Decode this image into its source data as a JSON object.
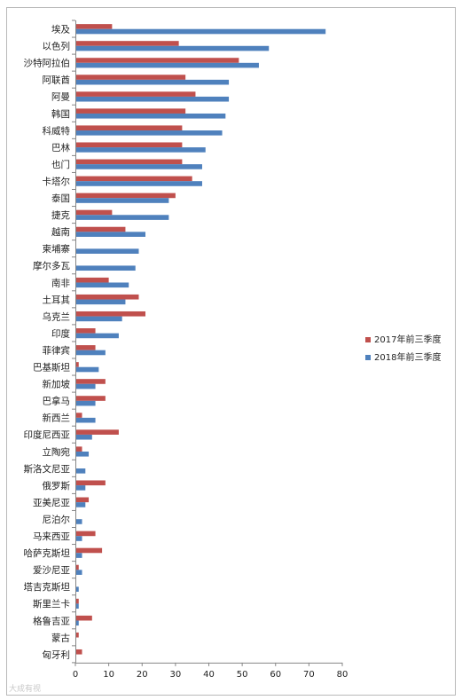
{
  "chart_data": {
    "type": "bar",
    "orientation": "horizontal",
    "categories": [
      "埃及",
      "以色列",
      "沙特阿拉伯",
      "阿联酋",
      "阿曼",
      "韩国",
      "科威特",
      "巴林",
      "也门",
      "卡塔尔",
      "泰国",
      "捷克",
      "越南",
      "柬埔寨",
      "摩尔多瓦",
      "南非",
      "土耳其",
      "乌克兰",
      "印度",
      "菲律宾",
      "巴基斯坦",
      "新加坡",
      "巴拿马",
      "新西兰",
      "印度尼西亚",
      "立陶宛",
      "斯洛文尼亚",
      "俄罗斯",
      "亚美尼亚",
      "尼泊尔",
      "马来西亚",
      "哈萨克斯坦",
      "爱沙尼亚",
      "塔吉克斯坦",
      "斯里兰卡",
      "格鲁吉亚",
      "蒙古",
      "匈牙利"
    ],
    "series": [
      {
        "name": "2017年前三季度",
        "color": "#c0504d",
        "values": [
          11,
          31,
          49,
          33,
          36,
          33,
          32,
          32,
          32,
          35,
          30,
          11,
          15,
          0,
          0,
          10,
          19,
          21,
          6,
          6,
          1,
          9,
          9,
          2,
          13,
          2,
          0,
          9,
          4,
          0,
          6,
          8,
          1,
          0,
          1,
          5,
          1,
          2
        ]
      },
      {
        "name": "2018年前三季度",
        "color": "#4f81bd",
        "values": [
          75,
          58,
          55,
          46,
          46,
          45,
          44,
          39,
          38,
          38,
          28,
          28,
          21,
          19,
          18,
          16,
          15,
          14,
          13,
          9,
          7,
          6,
          6,
          6,
          5,
          4,
          3,
          3,
          3,
          2,
          2,
          2,
          2,
          1,
          1,
          1,
          0,
          0
        ]
      }
    ],
    "xlim": [
      0,
      80
    ],
    "xticks": [
      0,
      10,
      20,
      30,
      40,
      50,
      60,
      70,
      80
    ],
    "grid": false,
    "legend_position": "right"
  },
  "watermark": "大成有视"
}
